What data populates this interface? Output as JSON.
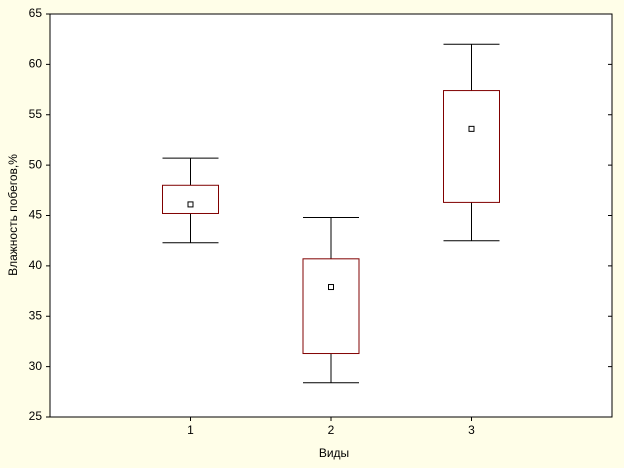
{
  "chart_data": {
    "type": "box",
    "x_label": "Виды",
    "y_label": "Влажность побегов,%",
    "categories": [
      "1",
      "2",
      "3"
    ],
    "min": [
      42.3,
      28.4,
      42.5
    ],
    "q1": [
      45.2,
      31.3,
      46.3
    ],
    "median": [
      46.1,
      37.9,
      53.6
    ],
    "q3": [
      48.0,
      40.7,
      57.4
    ],
    "max": [
      50.7,
      44.8,
      62.0
    ],
    "ylim": [
      25,
      65
    ],
    "yticks": [
      25,
      30,
      35,
      40,
      45,
      50,
      55,
      60,
      65
    ],
    "box_color": "#800000",
    "whisker_color": "#000000"
  }
}
